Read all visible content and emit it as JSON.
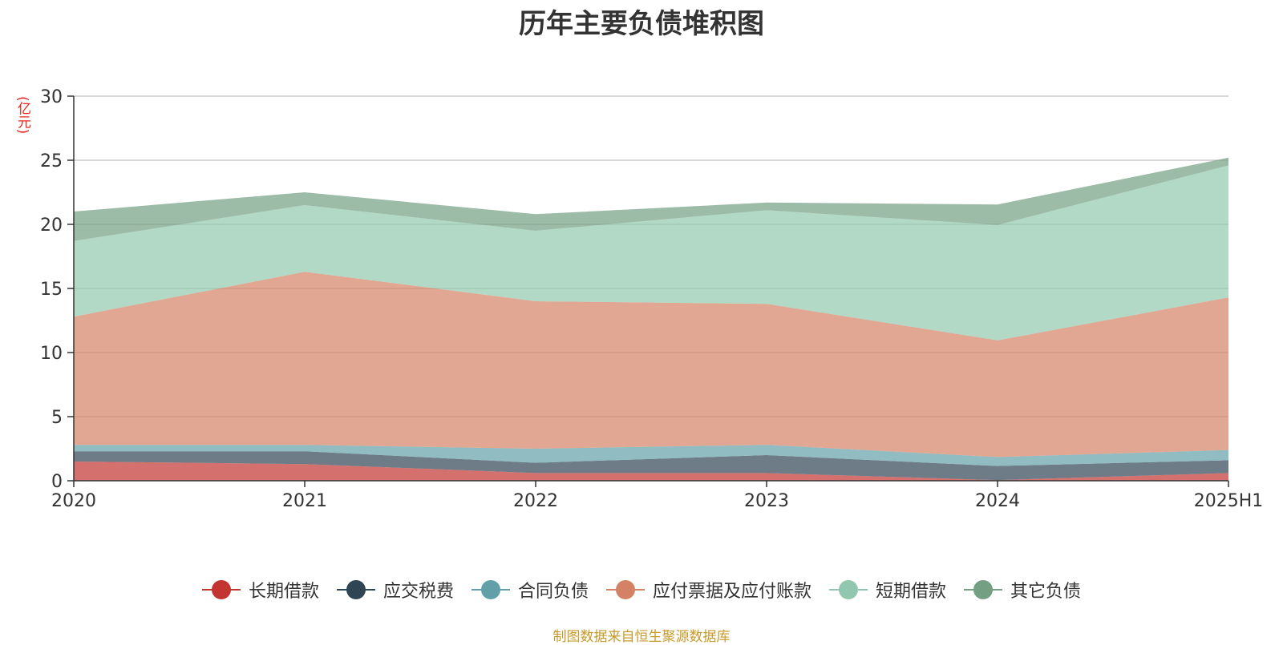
{
  "chart_data": {
    "type": "area",
    "stacked": true,
    "title": "历年主要负债堆积图",
    "ylabel": "(亿元)",
    "xlabel": "",
    "categories": [
      "2020",
      "2021",
      "2022",
      "2023",
      "2024",
      "2025H1"
    ],
    "ylim": [
      0,
      30
    ],
    "yticks": [
      0,
      5,
      10,
      15,
      20,
      25,
      30
    ],
    "grid": true,
    "legend_position": "bottom",
    "series": [
      {
        "name": "长期借款",
        "color": "#c23531",
        "values": [
          1.5,
          1.3,
          0.6,
          0.6,
          0.05,
          0.6
        ]
      },
      {
        "name": "应交税费",
        "color": "#2f4554",
        "values": [
          0.8,
          1.0,
          0.8,
          1.4,
          1.1,
          1.0
        ]
      },
      {
        "name": "合同负债",
        "color": "#61a0a8",
        "values": [
          0.5,
          0.5,
          1.1,
          0.8,
          0.7,
          0.8
        ]
      },
      {
        "name": "应付票据及应付账款",
        "color": "#d48265",
        "values": [
          10.0,
          13.5,
          11.5,
          11.0,
          9.1,
          11.9
        ]
      },
      {
        "name": "短期借款",
        "color": "#91c7ae",
        "values": [
          5.9,
          5.2,
          5.5,
          7.3,
          9.0,
          10.3
        ]
      },
      {
        "name": "其它负债",
        "color": "#749f83",
        "values": [
          2.3,
          1.0,
          1.3,
          0.6,
          1.6,
          0.6
        ]
      }
    ]
  },
  "footer": {
    "source": "制图数据来自恒生聚源数据库"
  }
}
